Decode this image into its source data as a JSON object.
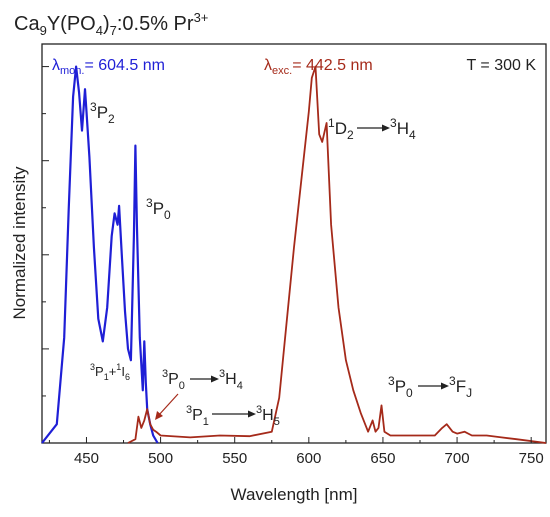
{
  "chart_data": {
    "type": "line",
    "title_parts": {
      "base": "Ca",
      "s1": "9",
      "mid": "Y(PO",
      "s2": "4",
      "end": ")",
      "s3": "7",
      "after": ":0.5% Pr",
      "sup": "3+"
    },
    "xlabel": "Wavelength [nm]",
    "ylabel": "Normalized intensity",
    "xlim": [
      420,
      760
    ],
    "ylim": [
      0,
      1.06
    ],
    "x_ticks": [
      450,
      500,
      550,
      600,
      650,
      700,
      750
    ],
    "y_ticks_labeled": false,
    "grid": false,
    "temperature_label": "T = 300 K",
    "series": [
      {
        "key": "excitation",
        "legend_symbol": "λ",
        "legend_sub": "mon.",
        "legend_value": "= 604.5 nm",
        "color": "#1f1fd6",
        "x": [
          420,
          430,
          435,
          438,
          441,
          443,
          445,
          447,
          449,
          450,
          452,
          455,
          458,
          461,
          464,
          467,
          469,
          471,
          472,
          474,
          476,
          478,
          480,
          482,
          483,
          484,
          486,
          488,
          489,
          490,
          491,
          493,
          495,
          498
        ],
        "y": [
          0.0,
          0.05,
          0.28,
          0.62,
          0.92,
          1.0,
          0.93,
          0.83,
          0.94,
          0.88,
          0.76,
          0.52,
          0.33,
          0.27,
          0.36,
          0.55,
          0.61,
          0.58,
          0.63,
          0.49,
          0.35,
          0.25,
          0.22,
          0.55,
          0.79,
          0.58,
          0.28,
          0.14,
          0.27,
          0.16,
          0.09,
          0.05,
          0.02,
          0.0
        ]
      },
      {
        "key": "emission",
        "legend_symbol": "λ",
        "legend_sub": "exc.",
        "legend_value": "= 442.5 nm",
        "color": "#a52a1a",
        "x": [
          478,
          483,
          485,
          487,
          489,
          491,
          493,
          495,
          497,
          500,
          520,
          540,
          560,
          575,
          580,
          585,
          590,
          595,
          600,
          602,
          604.5,
          607,
          609,
          612,
          615,
          620,
          625,
          630,
          635,
          640,
          643,
          645,
          647,
          649,
          651,
          655,
          670,
          685,
          690,
          693,
          697,
          700,
          705,
          710,
          720,
          730,
          740,
          760
        ],
        "y": [
          0.0,
          0.01,
          0.07,
          0.04,
          0.06,
          0.09,
          0.05,
          0.035,
          0.03,
          0.02,
          0.015,
          0.02,
          0.018,
          0.03,
          0.12,
          0.32,
          0.52,
          0.7,
          0.88,
          0.97,
          1.0,
          0.82,
          0.8,
          0.85,
          0.58,
          0.36,
          0.22,
          0.14,
          0.08,
          0.03,
          0.06,
          0.03,
          0.04,
          0.1,
          0.03,
          0.02,
          0.02,
          0.02,
          0.04,
          0.05,
          0.03,
          0.025,
          0.03,
          0.02,
          0.02,
          0.015,
          0.01,
          0.0
        ]
      }
    ],
    "annotations": {
      "p2": {
        "base": "P",
        "sup": "3",
        "sub": "2"
      },
      "p0": {
        "base": "P",
        "sup": "3",
        "sub": "0"
      },
      "p1i6": {
        "sup1": "3",
        "base1": "P",
        "sub1": "1",
        "plus": "+",
        "sup2": "1",
        "base2": "I",
        "sub2": "6"
      },
      "p0h4": {
        "sup1": "3",
        "base1": "P",
        "sub1": "0",
        "sup2": "3",
        "base2": "H",
        "sub2": "4"
      },
      "p1h5": {
        "sup1": "3",
        "base1": "P",
        "sub1": "1",
        "sup2": "3",
        "base2": "H",
        "sub2": "5"
      },
      "d2h4": {
        "sup1": "1",
        "base1": "D",
        "sub1": "2",
        "sup2": "3",
        "base2": "H",
        "sub2": "4"
      },
      "p0fj": {
        "sup1": "3",
        "base1": "P",
        "sub1": "0",
        "sup2": "3",
        "base2": "F",
        "sub2": "J"
      }
    }
  }
}
